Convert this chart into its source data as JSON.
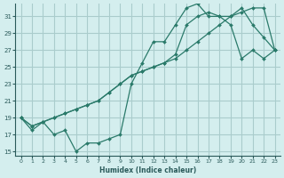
{
  "xlabel": "Humidex (Indice chaleur)",
  "bg_color": "#d4eeee",
  "grid_color": "#aacccc",
  "line_color": "#2a7a6a",
  "xlim": [
    -0.5,
    23.5
  ],
  "ylim": [
    14.5,
    32.5
  ],
  "xticks": [
    0,
    1,
    2,
    3,
    4,
    5,
    6,
    7,
    8,
    9,
    10,
    11,
    12,
    13,
    14,
    15,
    16,
    17,
    18,
    19,
    20,
    21,
    22,
    23
  ],
  "yticks": [
    15,
    17,
    19,
    21,
    23,
    25,
    27,
    29,
    31
  ],
  "line1_x": [
    0,
    1,
    2,
    3,
    4,
    5,
    6,
    7,
    8,
    9,
    10,
    11,
    12,
    13,
    14,
    15,
    16,
    17,
    18,
    19,
    20,
    21,
    22,
    23
  ],
  "line1_y": [
    19,
    17.5,
    18.5,
    17,
    17.5,
    15,
    16,
    16,
    16.5,
    17,
    23,
    25.5,
    28,
    28,
    30,
    32,
    32.5,
    31,
    31,
    30,
    26,
    27,
    26,
    27
  ],
  "line2_x": [
    0,
    1,
    2,
    3,
    4,
    5,
    6,
    7,
    8,
    9,
    10,
    11,
    12,
    13,
    14,
    15,
    16,
    17,
    18,
    19,
    20,
    21,
    22,
    23
  ],
  "line2_y": [
    19,
    18,
    18.5,
    19,
    19.5,
    20,
    20.5,
    21,
    22,
    23,
    24,
    24.5,
    25,
    25.5,
    26,
    27,
    28,
    29,
    30,
    31,
    31.5,
    32,
    32,
    27
  ],
  "line3_x": [
    0,
    1,
    2,
    3,
    4,
    5,
    6,
    7,
    8,
    9,
    10,
    11,
    12,
    13,
    14,
    15,
    16,
    17,
    18,
    19,
    20,
    21,
    22,
    23
  ],
  "line3_y": [
    19,
    18,
    18.5,
    19,
    19.5,
    20,
    20.5,
    21,
    22,
    23,
    24,
    24.5,
    25,
    25.5,
    26.5,
    30,
    31,
    31.5,
    31,
    31,
    32,
    30,
    28.5,
    27
  ]
}
